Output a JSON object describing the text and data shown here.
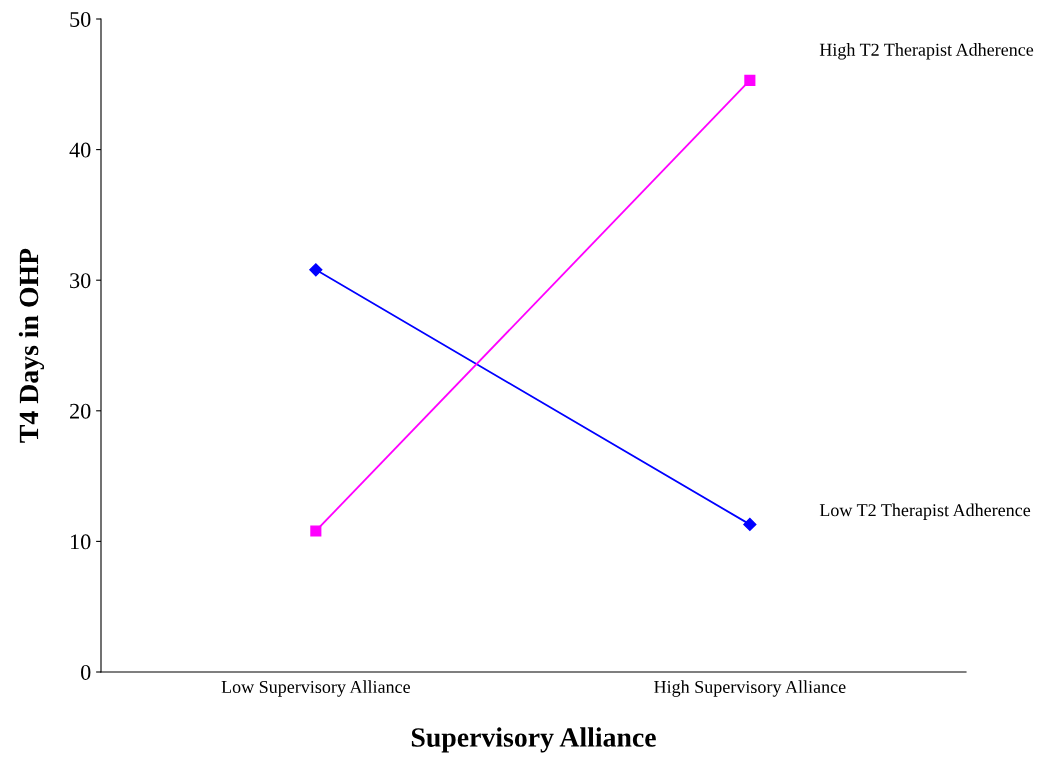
{
  "chart_data": {
    "type": "line",
    "xlabel": "Supervisory Alliance",
    "ylabel": "T4 Days in OHP",
    "categories": [
      "Low Supervisory Alliance",
      "High Supervisory Alliance"
    ],
    "series": [
      {
        "name": "Low T2 Therapist Adherence",
        "color": "#0000ff",
        "marker": "diamond",
        "values": [
          30.8,
          11.3
        ]
      },
      {
        "name": "High T2 Therapist Adherence",
        "color": "#ff00ff",
        "marker": "square",
        "values": [
          10.8,
          45.3
        ]
      }
    ],
    "ylim": [
      0,
      50
    ],
    "yticks": [
      0,
      10,
      20,
      30,
      40,
      50
    ],
    "grid": false,
    "legend": false,
    "line_style": "solid"
  }
}
